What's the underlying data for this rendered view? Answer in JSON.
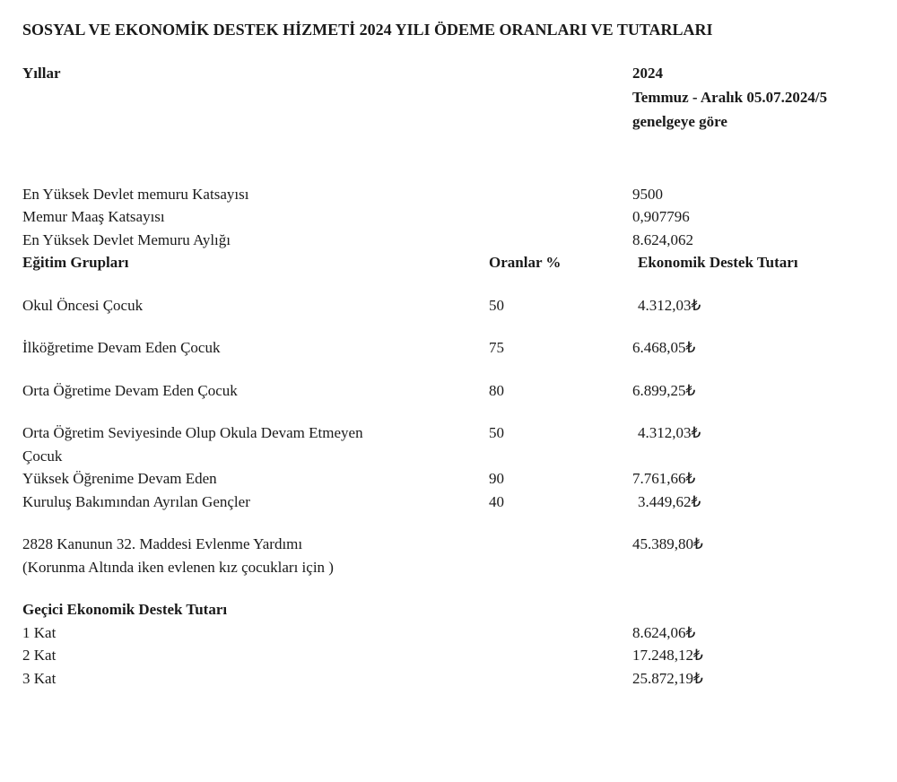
{
  "title": "SOSYAL VE EKONOMİK DESTEK HİZMETİ 2024 YILI ÖDEME ORANLARI VE TUTARLARI",
  "header": {
    "years_label": "Yıllar",
    "year": "2024",
    "subtext_line1": "Temmuz - Aralık 05.07.2024/5",
    "subtext_line2": "genelgeye göre"
  },
  "coefficients": {
    "row1_label": "En Yüksek Devlet memuru Katsayısı",
    "row1_value": "9500",
    "row2_label": "Memur Maaş Katsayısı",
    "row2_value": "0,907796",
    "row3_label": "En Yüksek Devlet Memuru Aylığı",
    "row3_value": "8.624,062"
  },
  "education_header": {
    "col1": "Eğitim Grupları",
    "col2": "Oranlar %",
    "col3": "Ekonomik Destek Tutarı"
  },
  "education_rows": {
    "r1_label": "Okul Öncesi Çocuk",
    "r1_rate": "50",
    "r1_amount": "4.312,03₺",
    "r2_label": "İlköğretime Devam Eden Çocuk",
    "r2_rate": "75",
    "r2_amount": "6.468,05₺",
    "r3_label": "Orta Öğretime Devam Eden Çocuk",
    "r3_rate": "80",
    "r3_amount": "6.899,25₺",
    "r4_label_line1": "Orta Öğretim Seviyesinde Olup Okula Devam Etmeyen",
    "r4_label_line2": "Çocuk",
    "r4_rate": "50",
    "r4_amount": "4.312,03₺",
    "r5_label": "Yüksek Öğrenime Devam Eden",
    "r5_rate": "90",
    "r5_amount": "7.761,66₺",
    "r6_label": "Kuruluş Bakımından Ayrılan Gençler",
    "r6_rate": "40",
    "r6_amount": "3.449,62₺"
  },
  "marriage": {
    "label_line1": "2828 Kanunun 32. Maddesi Evlenme Yardımı",
    "label_line2": "(Korunma Altında iken evlenen kız çocukları için )",
    "amount": "45.389,80₺"
  },
  "temporary": {
    "header": "Geçici Ekonomik Destek Tutarı",
    "r1_label": "1 Kat",
    "r1_amount": "8.624,06₺",
    "r2_label": "2 Kat",
    "r2_amount": "17.248,12₺",
    "r3_label": "3 Kat",
    "r3_amount": "25.872,19₺"
  }
}
